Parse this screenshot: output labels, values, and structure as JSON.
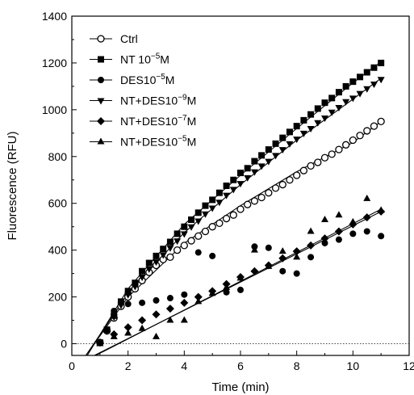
{
  "chart_data": {
    "type": "scatter",
    "title": "",
    "xlabel": "Time (min)",
    "ylabel": "Fluorescence (RFU)",
    "xlim": [
      0,
      12
    ],
    "ylim": [
      -50,
      1400
    ],
    "xticks": [
      0,
      2,
      4,
      6,
      8,
      10,
      12
    ],
    "yticks": [
      0,
      200,
      400,
      600,
      800,
      1000,
      1200,
      1400
    ],
    "baseline": 0,
    "grid": false,
    "legend_position": "top-left",
    "series": [
      {
        "name": "Ctrl",
        "label_base": "Ctrl",
        "label_sup": "",
        "label_tail": "",
        "marker": "circle-open",
        "x": [
          1.0,
          1.25,
          1.5,
          1.75,
          2.0,
          2.25,
          2.5,
          2.75,
          3.0,
          3.25,
          3.5,
          3.75,
          4.0,
          4.25,
          4.5,
          4.75,
          5.0,
          5.25,
          5.5,
          5.75,
          6.0,
          6.25,
          6.5,
          6.75,
          7.0,
          7.25,
          7.5,
          7.75,
          8.0,
          8.25,
          8.5,
          8.75,
          9.0,
          9.25,
          9.5,
          9.75,
          10.0,
          10.25,
          10.5,
          10.75,
          11.0
        ],
        "y": [
          5,
          55,
          110,
          160,
          200,
          235,
          270,
          305,
          335,
          360,
          370,
          400,
          420,
          440,
          460,
          480,
          500,
          515,
          535,
          550,
          575,
          595,
          610,
          625,
          645,
          665,
          680,
          700,
          720,
          740,
          760,
          775,
          795,
          810,
          830,
          850,
          870,
          890,
          910,
          930,
          950
        ]
      },
      {
        "name": "NT 10-5M",
        "label_base": "NT 10",
        "label_sup": "−5",
        "label_tail": "M",
        "marker": "square",
        "x": [
          1.0,
          1.25,
          1.5,
          1.75,
          2.0,
          2.25,
          2.5,
          2.75,
          3.0,
          3.25,
          3.5,
          3.75,
          4.0,
          4.25,
          4.5,
          4.75,
          5.0,
          5.25,
          5.5,
          5.75,
          6.0,
          6.25,
          6.5,
          6.75,
          7.0,
          7.25,
          7.5,
          7.75,
          8.0,
          8.25,
          8.5,
          8.75,
          9.0,
          9.25,
          9.5,
          9.75,
          10.0,
          10.25,
          10.5,
          10.75,
          11.0
        ],
        "y": [
          5,
          60,
          120,
          180,
          225,
          260,
          310,
          345,
          375,
          405,
          435,
          470,
          500,
          530,
          560,
          590,
          615,
          645,
          675,
          700,
          730,
          750,
          780,
          805,
          830,
          855,
          880,
          905,
          930,
          955,
          980,
          1005,
          1030,
          1050,
          1075,
          1100,
          1120,
          1140,
          1160,
          1180,
          1200
        ]
      },
      {
        "name": "DES10-5M",
        "label_base": "DES10",
        "label_sup": "−5",
        "label_tail": "M",
        "marker": "circle",
        "x": [
          1.5,
          2.0,
          2.5,
          3.0,
          3.5,
          4.0,
          4.5,
          5.0,
          5.5,
          6.0,
          6.5,
          7.0,
          7.5,
          8.0,
          8.5,
          9.0,
          9.5,
          10.0,
          10.5,
          11.0
        ],
        "y": [
          140,
          170,
          175,
          185,
          195,
          210,
          390,
          375,
          220,
          230,
          415,
          410,
          310,
          300,
          370,
          430,
          445,
          470,
          480,
          460
        ]
      },
      {
        "name": "NT+DES10-9M",
        "label_base": "NT+DES10",
        "label_sup": "−9",
        "label_tail": "M",
        "marker": "triangle-down",
        "x": [
          1.0,
          1.25,
          1.5,
          1.75,
          2.0,
          2.25,
          2.5,
          2.75,
          3.0,
          3.25,
          3.5,
          3.75,
          4.0,
          4.25,
          4.5,
          4.75,
          5.0,
          5.25,
          5.5,
          5.75,
          6.0,
          6.25,
          6.5,
          6.75,
          7.0,
          7.25,
          7.5,
          7.75,
          8.0,
          8.25,
          8.5,
          8.75,
          9.0,
          9.25,
          9.5,
          9.75,
          10.0,
          10.25,
          10.5,
          10.75,
          11.0
        ],
        "y": [
          5,
          55,
          115,
          165,
          210,
          245,
          285,
          320,
          350,
          380,
          410,
          440,
          470,
          500,
          525,
          555,
          580,
          605,
          635,
          660,
          685,
          710,
          735,
          760,
          780,
          805,
          830,
          855,
          875,
          900,
          920,
          945,
          965,
          990,
          1010,
          1035,
          1050,
          1070,
          1090,
          1110,
          1130
        ]
      },
      {
        "name": "NT+DES10-7M",
        "label_base": "NT+DES10",
        "label_sup": "−7",
        "label_tail": "M",
        "marker": "diamond",
        "x": [
          1.0,
          1.5,
          2.0,
          2.5,
          3.0,
          3.5,
          4.0,
          4.5,
          5.0,
          5.5,
          6.0,
          6.5,
          7.0,
          7.5,
          8.0,
          8.5,
          9.0,
          9.5,
          10.0,
          10.5,
          11.0
        ],
        "y": [
          5,
          40,
          70,
          100,
          125,
          150,
          175,
          200,
          225,
          255,
          285,
          310,
          335,
          365,
          395,
          420,
          450,
          480,
          510,
          540,
          565
        ]
      },
      {
        "name": "NT+DES10-5M",
        "label_base": "NT+DES10",
        "label_sup": "−5",
        "label_tail": "M",
        "marker": "triangle-up",
        "x": [
          1.0,
          1.5,
          2.0,
          2.5,
          3.0,
          3.5,
          4.0,
          4.5,
          5.0,
          5.5,
          6.0,
          6.5,
          7.0,
          7.5,
          8.0,
          8.5,
          9.0,
          9.5,
          10.0,
          10.5,
          11.0
        ],
        "y": [
          0,
          30,
          45,
          65,
          30,
          100,
          100,
          180,
          215,
          240,
          280,
          400,
          330,
          395,
          370,
          480,
          530,
          550,
          520,
          620,
          570
        ]
      }
    ],
    "fit_lines": [
      {
        "x": [
          0.5,
          2,
          4,
          6,
          8,
          10,
          11
        ],
        "y": [
          -50,
          200,
          430,
          590,
          735,
          860,
          950
        ]
      },
      {
        "x": [
          0.55,
          2,
          4,
          6,
          8,
          10,
          11
        ],
        "y": [
          -50,
          235,
          510,
          720,
          920,
          1115,
          1205
        ]
      },
      {
        "x": [
          0.5,
          2,
          4,
          6,
          8,
          10,
          11
        ],
        "y": [
          -50,
          215,
          475,
          680,
          870,
          1045,
          1135
        ]
      },
      {
        "x": [
          0.8,
          11
        ],
        "y": [
          -50,
          565
        ]
      },
      {
        "x": [
          0.85,
          11
        ],
        "y": [
          -50,
          575
        ]
      }
    ]
  }
}
